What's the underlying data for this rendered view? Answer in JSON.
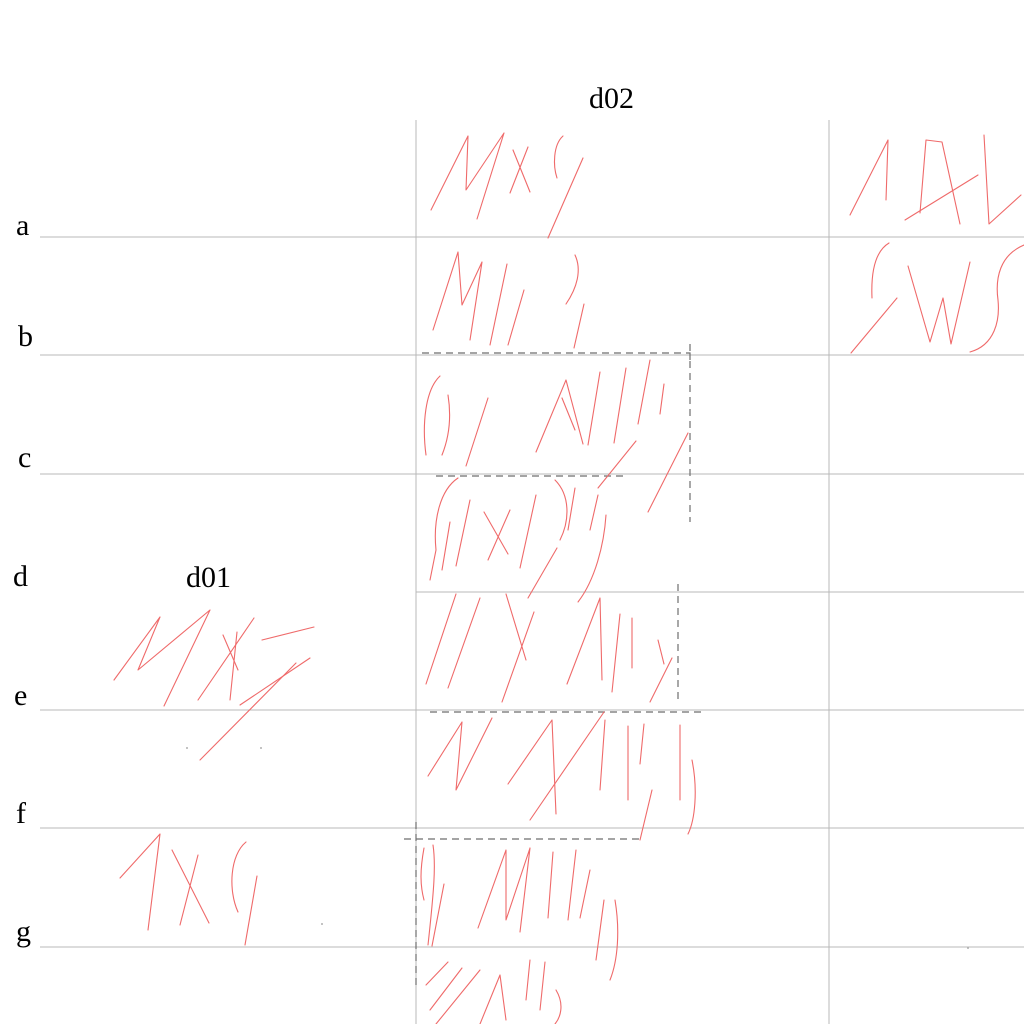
{
  "diagram": {
    "row_labels": [
      "a",
      "b",
      "c",
      "d",
      "e",
      "f",
      "g"
    ],
    "column_labels": {
      "left": "d01",
      "right": "d02"
    }
  },
  "colors": {
    "grid_line": "#b8b8b8",
    "dashed_box": "#6e6e6e",
    "glyph_stroke": "#ef6a6a",
    "label_text": "#000000"
  }
}
